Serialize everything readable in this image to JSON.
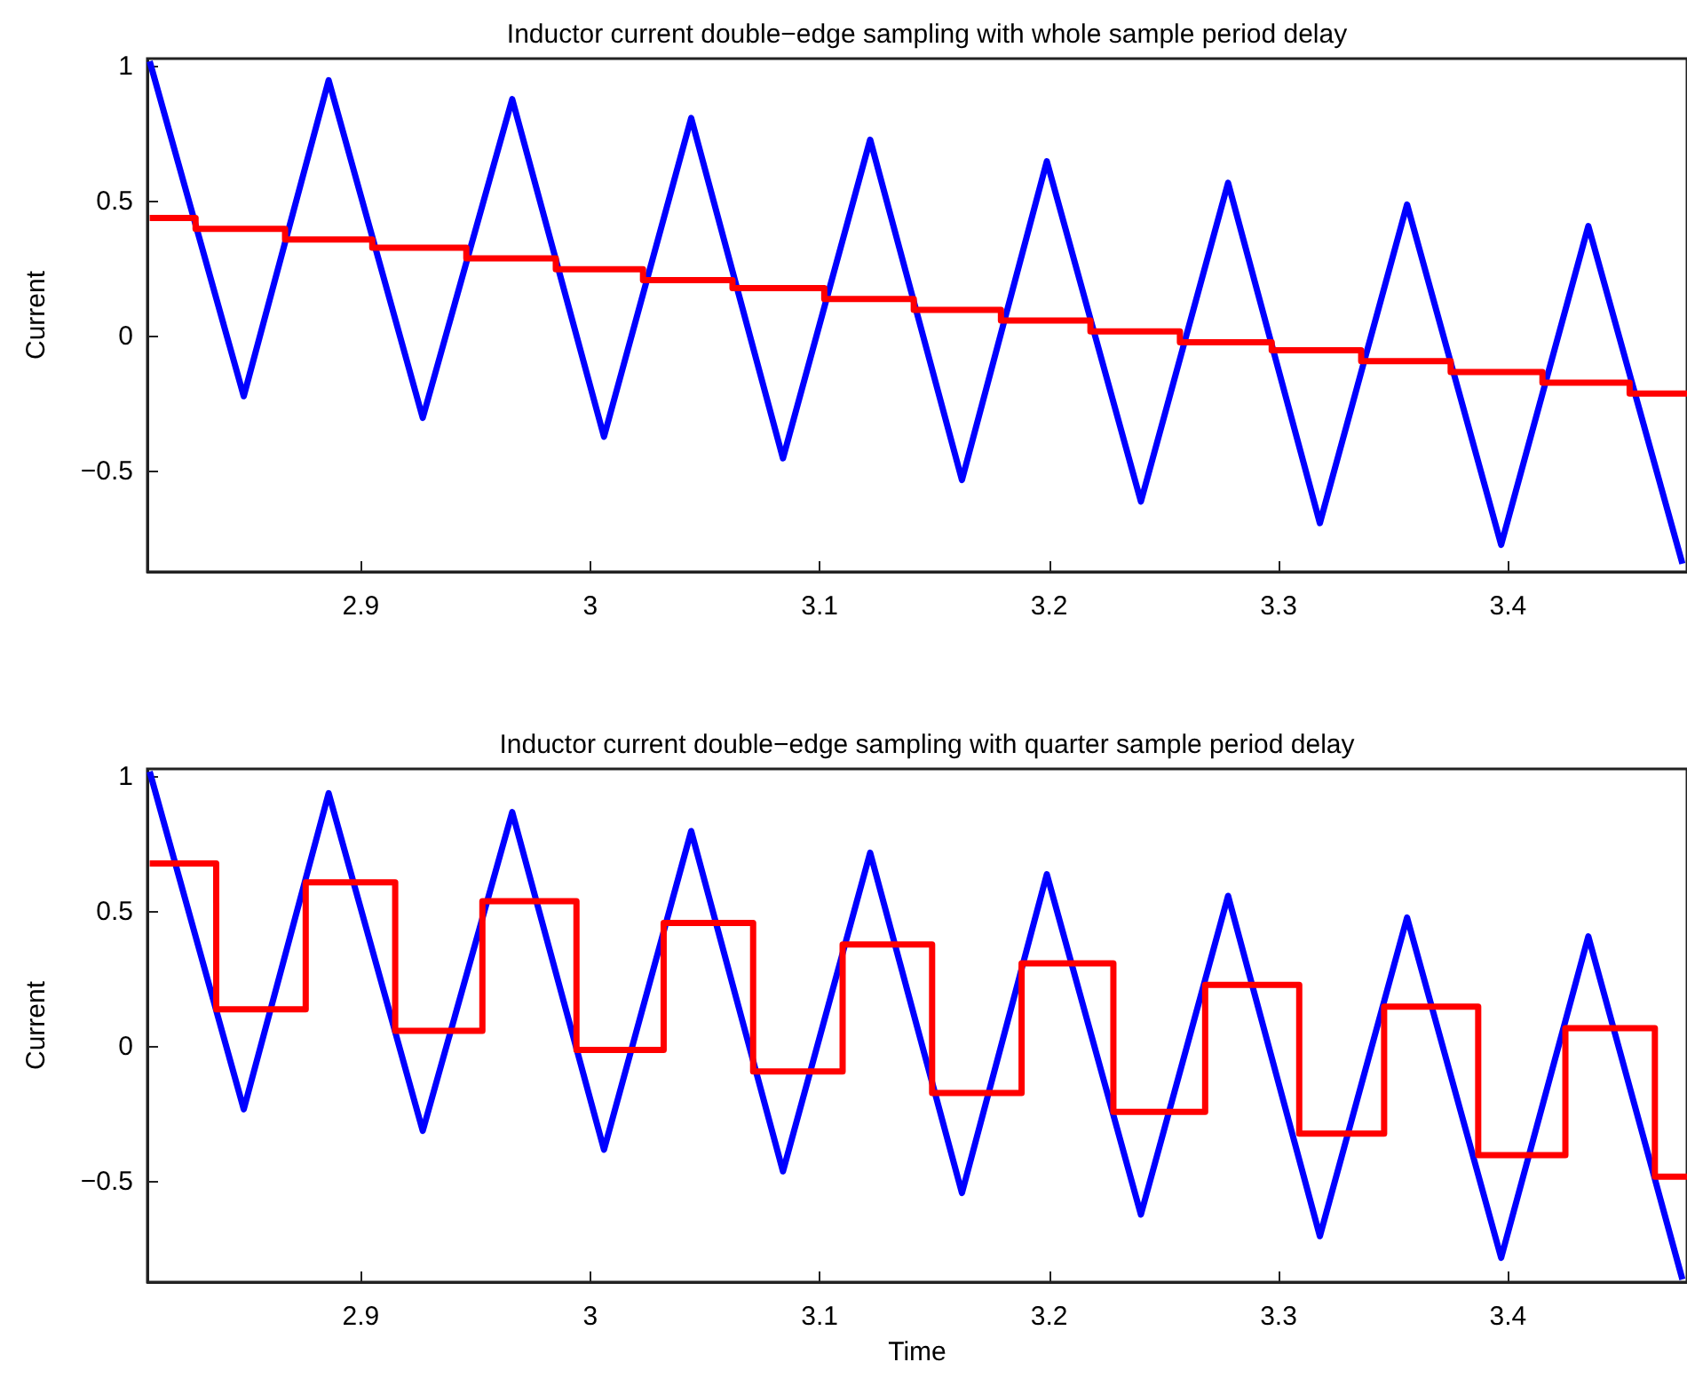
{
  "chart_data": [
    {
      "type": "line",
      "title": "Inductor current double−edge sampling with whole sample period delay",
      "ylabel": "Current",
      "xlim": [
        2.807,
        3.478
      ],
      "ylim": [
        -0.87,
        1.03
      ],
      "xticks": [
        2.9,
        3,
        3.1,
        3.2,
        3.3,
        3.4
      ],
      "yticks": [
        -0.5,
        0,
        0.5,
        1
      ],
      "marker": "none",
      "series": [
        {
          "color": "#0000ff",
          "x": [
            2.808,
            2.849,
            2.886,
            2.927,
            2.966,
            3.006,
            3.044,
            3.084,
            3.122,
            3.162,
            3.199,
            3.24,
            3.278,
            3.318,
            3.356,
            3.397,
            3.435,
            3.476
          ],
          "values": [
            1.02,
            -0.22,
            0.95,
            -0.3,
            0.88,
            -0.37,
            0.81,
            -0.45,
            0.73,
            -0.53,
            0.65,
            -0.61,
            0.57,
            -0.69,
            0.49,
            -0.77,
            0.41,
            -0.84
          ]
        },
        {
          "type": "step",
          "color": "#ff0000",
          "x": [
            2.808,
            2.828,
            2.867,
            2.905,
            2.946,
            2.985,
            3.023,
            3.062,
            3.102,
            3.141,
            3.179,
            3.218,
            3.257,
            3.297,
            3.336,
            3.375,
            3.415,
            3.453,
            3.478
          ],
          "values": [
            0.44,
            0.4,
            0.36,
            0.33,
            0.29,
            0.25,
            0.21,
            0.18,
            0.14,
            0.1,
            0.06,
            0.02,
            -0.02,
            -0.05,
            -0.09,
            -0.13,
            -0.17,
            -0.21,
            -0.21
          ]
        }
      ]
    },
    {
      "type": "line",
      "title": "Inductor current double−edge sampling with quarter sample period delay",
      "ylabel": "Current",
      "xlabel": "Time",
      "xlim": [
        2.807,
        3.478
      ],
      "ylim": [
        -0.87,
        1.03
      ],
      "xticks": [
        2.9,
        3,
        3.1,
        3.2,
        3.3,
        3.4
      ],
      "yticks": [
        -0.5,
        0,
        0.5,
        1
      ],
      "marker": "none",
      "series": [
        {
          "color": "#0000ff",
          "x": [
            2.808,
            2.849,
            2.886,
            2.927,
            2.966,
            3.006,
            3.044,
            3.084,
            3.122,
            3.162,
            3.199,
            3.24,
            3.278,
            3.318,
            3.356,
            3.397,
            3.435,
            3.476
          ],
          "values": [
            1.02,
            -0.23,
            0.94,
            -0.31,
            0.87,
            -0.38,
            0.8,
            -0.46,
            0.72,
            -0.54,
            0.64,
            -0.62,
            0.56,
            -0.7,
            0.48,
            -0.78,
            0.41,
            -0.86
          ]
        },
        {
          "type": "step",
          "color": "#ff0000",
          "x": [
            2.808,
            2.837,
            2.876,
            2.915,
            2.953,
            2.994,
            3.032,
            3.071,
            3.11,
            3.149,
            3.188,
            3.228,
            3.268,
            3.309,
            3.346,
            3.387,
            3.425,
            3.464,
            3.478
          ],
          "values": [
            0.68,
            0.14,
            0.61,
            0.06,
            0.54,
            -0.01,
            0.46,
            -0.09,
            0.38,
            -0.17,
            0.31,
            -0.24,
            0.23,
            -0.32,
            0.15,
            -0.4,
            0.07,
            -0.48,
            -0.48
          ]
        }
      ]
    }
  ]
}
